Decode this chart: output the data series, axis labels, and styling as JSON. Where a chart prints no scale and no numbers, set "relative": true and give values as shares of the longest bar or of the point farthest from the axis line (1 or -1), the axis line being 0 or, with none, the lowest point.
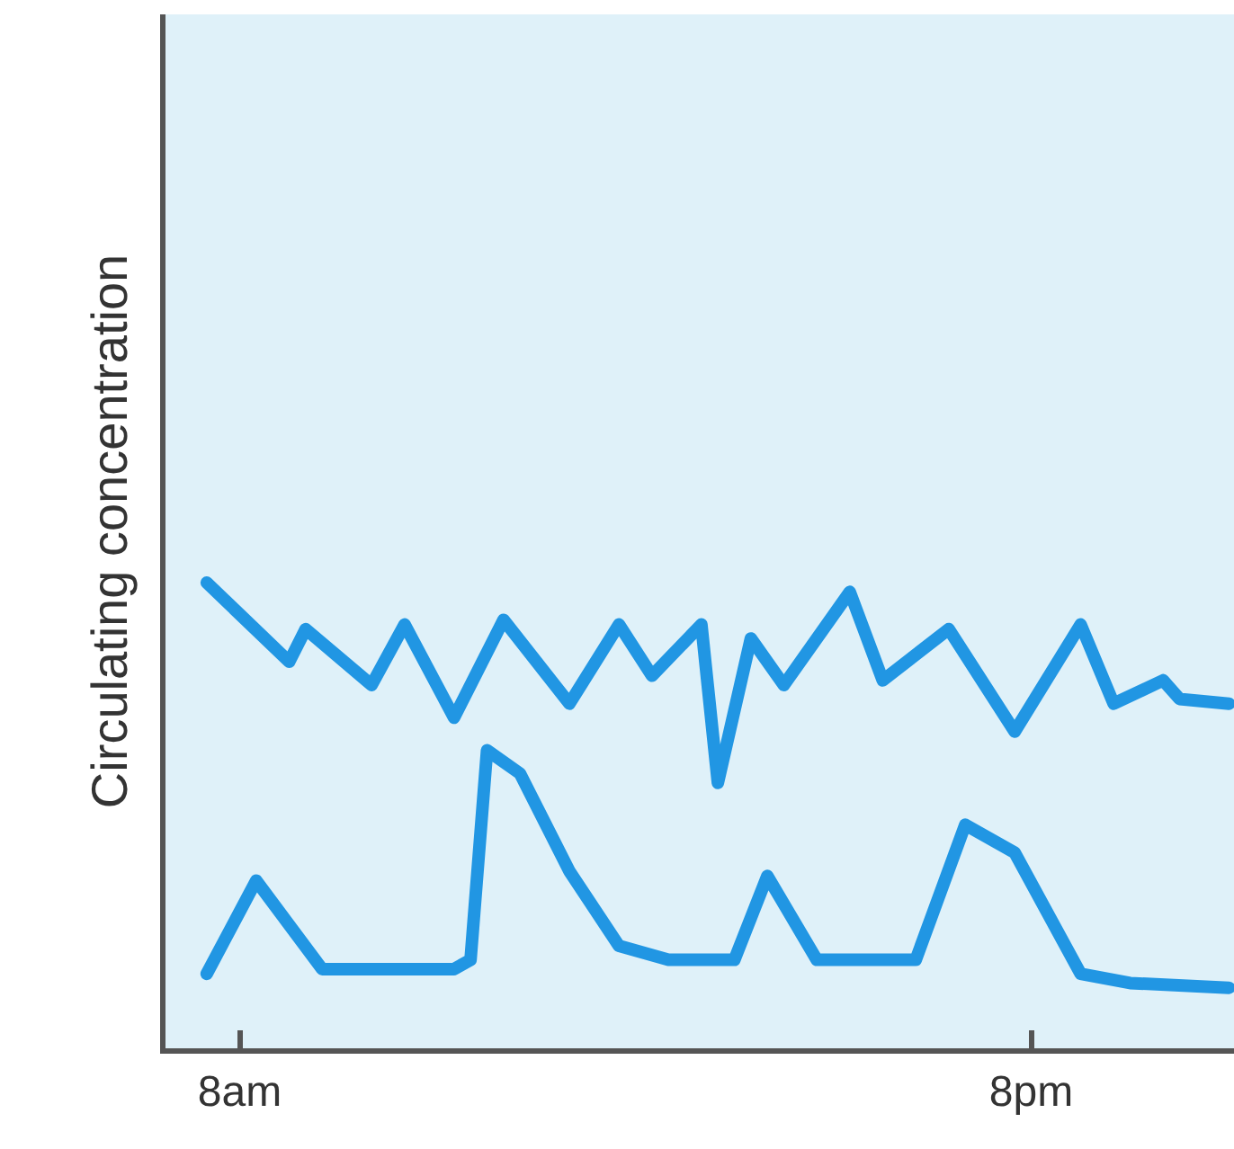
{
  "chart_data": {
    "type": "line",
    "relative": true,
    "ylabel": "Circulating concentration",
    "grid": false,
    "marker": "none",
    "line_style": "solid",
    "categories": [
      null,
      null,
      "8am",
      null,
      null,
      null,
      null,
      null,
      null,
      null,
      null,
      null,
      null,
      null,
      null,
      null,
      null,
      null,
      null,
      null,
      null,
      null,
      null,
      null,
      null,
      null,
      null,
      null,
      null,
      null,
      null,
      null,
      null,
      null,
      null,
      null,
      null,
      null,
      null,
      null,
      null,
      null,
      null,
      null,
      null,
      null,
      null,
      null,
      null,
      null,
      "8pm",
      null,
      null,
      null,
      null,
      null,
      null,
      null,
      null,
      null,
      null,
      null,
      null
    ],
    "series": [
      {
        "color": "#2196e3",
        "values": [
          1.0,
          null,
          null,
          null,
          null,
          0.83,
          0.9,
          null,
          null,
          null,
          0.78,
          null,
          0.91,
          null,
          null,
          0.71,
          null,
          null,
          0.92,
          null,
          null,
          null,
          0.74,
          null,
          null,
          0.91,
          null,
          0.8,
          null,
          null,
          0.91,
          0.57,
          null,
          0.88,
          null,
          0.78,
          null,
          null,
          null,
          0.98,
          null,
          0.79,
          null,
          null,
          null,
          0.9,
          null,
          null,
          null,
          0.68,
          null,
          null,
          null,
          0.91,
          null,
          0.74,
          null,
          null,
          0.79,
          0.75,
          null,
          null,
          0.74
        ]
      },
      {
        "color": "#2196e3",
        "values": [
          0.16,
          null,
          null,
          0.36,
          null,
          null,
          null,
          0.17,
          null,
          null,
          null,
          null,
          null,
          null,
          null,
          0.17,
          0.19,
          0.64,
          null,
          0.59,
          null,
          null,
          0.38,
          null,
          null,
          0.22,
          null,
          null,
          0.19,
          null,
          null,
          null,
          0.19,
          null,
          0.37,
          null,
          null,
          0.19,
          null,
          null,
          null,
          null,
          null,
          0.19,
          null,
          null,
          0.48,
          null,
          null,
          0.42,
          null,
          null,
          null,
          0.16,
          null,
          null,
          0.14,
          null,
          null,
          null,
          null,
          null,
          0.13
        ]
      }
    ]
  }
}
